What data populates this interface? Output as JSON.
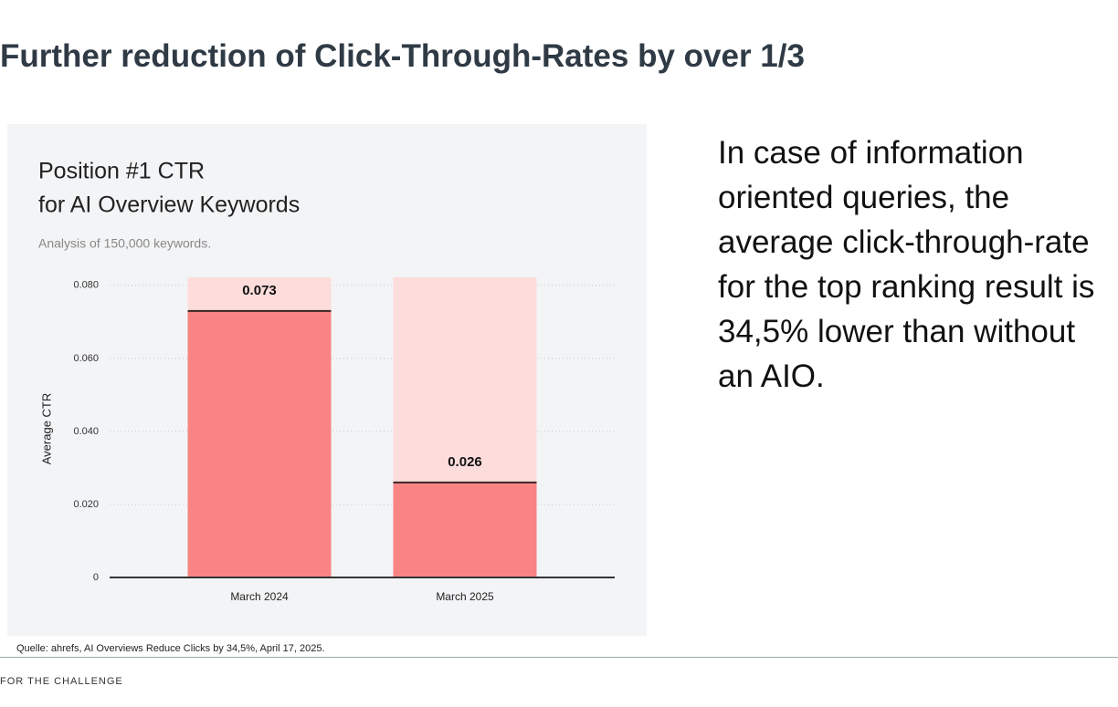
{
  "slide": {
    "title": "Further reduction of Click-Through-Rates by over 1/3",
    "body": "In case of information oriented queries, the average click-through-rate for the top ranking result is 34,5% lower than without an AIO.",
    "source": "Quelle: ahrefs, AI Overviews Reduce Clicks by 34,5%, April 17, 2025.",
    "footer": "FOR THE CHALLENGE"
  },
  "chart_data": {
    "type": "bar",
    "title": [
      "Position #1 CTR",
      "for AI Overview Keywords"
    ],
    "subtitle": "Analysis of 150,000 keywords.",
    "y_label": "Average CTR",
    "categories": [
      "March 2024",
      "March 2025"
    ],
    "values": [
      0.073,
      0.026
    ],
    "color": "#f98484",
    "band_color": "#fddcdc",
    "ylim": [
      0,
      0.0822
    ],
    "yticks": [
      0,
      {
        "value": 0.02,
        "label": "0.020"
      },
      {
        "value": 0.04,
        "label": "0.040"
      },
      {
        "value": 0.06,
        "label": "0.060"
      },
      {
        "value": 0.08,
        "label": "0.080"
      }
    ],
    "grid": true
  }
}
